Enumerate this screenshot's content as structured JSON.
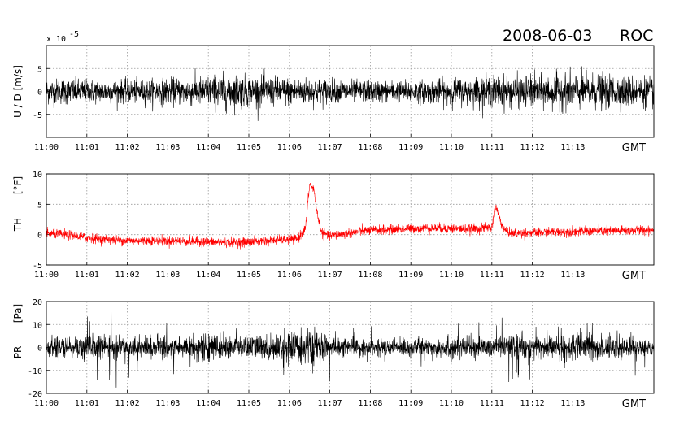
{
  "header": {
    "date": "2008-06-03",
    "station": "ROC"
  },
  "chart_data": [
    {
      "type": "line",
      "id": "ud",
      "ylabel": "U / D  [m/s]",
      "yscale_label": "x 10",
      "yscale_exp": "-5",
      "xlabel": "GMT",
      "ylim": [
        -10,
        10
      ],
      "yticks": [
        -5,
        0,
        5
      ],
      "ytick_labels": [
        "-5",
        "0",
        "5"
      ],
      "xticks": [
        "11:00",
        "11:01",
        "11:02",
        "11:03",
        "11:04",
        "11:05",
        "11:06",
        "11:07",
        "11:08",
        "11:09",
        "11:10",
        "11:11",
        "11:12",
        "11:13"
      ],
      "x_range_minutes": [
        0,
        15
      ],
      "grid": true,
      "color": "#000000",
      "series": [
        {
          "x_minutes": [
            0,
            0.5,
            1,
            1.5,
            2,
            2.5,
            3,
            3.5,
            4,
            4.5,
            5,
            5.5,
            6,
            6.5,
            7,
            7.5,
            8,
            8.5,
            9,
            9.5,
            10,
            10.5,
            11,
            11.5,
            12,
            12.5,
            13,
            13.5,
            14,
            14.5,
            15
          ],
          "amplitude": [
            2.5,
            2.5,
            2.3,
            2.2,
            2.2,
            2.3,
            2.5,
            2.7,
            3,
            3.5,
            3,
            2.8,
            2.7,
            2.6,
            2.4,
            2.2,
            2.1,
            2,
            2.2,
            2.3,
            2.5,
            2.6,
            3,
            3,
            3.2,
            3.3,
            3.4,
            3.3,
            3.2,
            3,
            3
          ]
        }
      ]
    },
    {
      "type": "line",
      "id": "th",
      "ylabel_left": "TH",
      "ylabel_unit": "[°F]",
      "xlabel": "GMT",
      "ylim": [
        -5,
        10
      ],
      "yticks": [
        -5,
        0,
        5,
        10
      ],
      "ytick_labels": [
        "-5",
        "0",
        "5",
        "10"
      ],
      "xticks": [
        "11:00",
        "11:01",
        "11:02",
        "11:03",
        "11:04",
        "11:05",
        "11:06",
        "11:07",
        "11:08",
        "11:09",
        "11:10",
        "11:11",
        "11:12",
        "11:13"
      ],
      "x_range_minutes": [
        0,
        15
      ],
      "grid": true,
      "color": "#ff0000",
      "series": [
        {
          "x_minutes": [
            0,
            0.5,
            1,
            1.5,
            2,
            2.5,
            3,
            3.5,
            4,
            4.5,
            5,
            5.5,
            6,
            6.2,
            6.4,
            6.5,
            6.6,
            6.7,
            6.8,
            7,
            7.5,
            8,
            8.5,
            9,
            9.5,
            10,
            10.5,
            11,
            11.1,
            11.2,
            11.3,
            11.5,
            12,
            12.5,
            13,
            13.5,
            14,
            14.5,
            15
          ],
          "baseline": [
            0.2,
            0,
            -0.5,
            -0.8,
            -1,
            -1,
            -1,
            -1.1,
            -1.2,
            -1.3,
            -1.2,
            -1,
            -0.8,
            -0.7,
            1,
            8.3,
            7.5,
            3,
            0.3,
            -0.2,
            0.3,
            0.7,
            0.8,
            1,
            1.1,
            1,
            0.9,
            1.2,
            4.6,
            2.5,
            0.8,
            0.2,
            0.3,
            0.4,
            0.5,
            0.6,
            0.6,
            0.7,
            0.8
          ],
          "noise": 0.7
        }
      ]
    },
    {
      "type": "line",
      "id": "pr",
      "ylabel_left": "PR",
      "ylabel_unit": "[Pa]",
      "xlabel": "GMT",
      "ylim": [
        -20,
        20
      ],
      "yticks": [
        -20,
        -10,
        0,
        10,
        20
      ],
      "ytick_labels": [
        "-20",
        "-10",
        "0",
        "10",
        "20"
      ],
      "xticks": [
        "11:00",
        "11:01",
        "11:02",
        "11:03",
        "11:04",
        "11:05",
        "11:06",
        "11:07",
        "11:08",
        "11:09",
        "11:10",
        "11:11",
        "11:12",
        "11:13"
      ],
      "x_range_minutes": [
        0,
        15
      ],
      "grid": true,
      "color": "#000000",
      "series": [
        {
          "x_minutes": [
            0,
            0.5,
            1,
            1.5,
            2,
            2.5,
            3,
            3.5,
            4,
            4.5,
            5,
            5.5,
            6,
            6.5,
            7,
            7.5,
            8,
            8.5,
            9,
            9.5,
            10,
            10.5,
            11,
            11.5,
            12,
            12.5,
            13,
            13.5,
            14,
            14.5,
            15
          ],
          "amplitude": [
            5,
            6,
            8,
            7,
            6,
            6,
            7,
            7,
            8,
            7,
            7,
            8,
            9,
            12,
            6,
            5,
            5,
            5,
            6,
            5,
            7,
            6,
            6,
            7,
            8,
            7,
            8,
            8,
            7,
            6,
            5
          ]
        }
      ]
    }
  ]
}
